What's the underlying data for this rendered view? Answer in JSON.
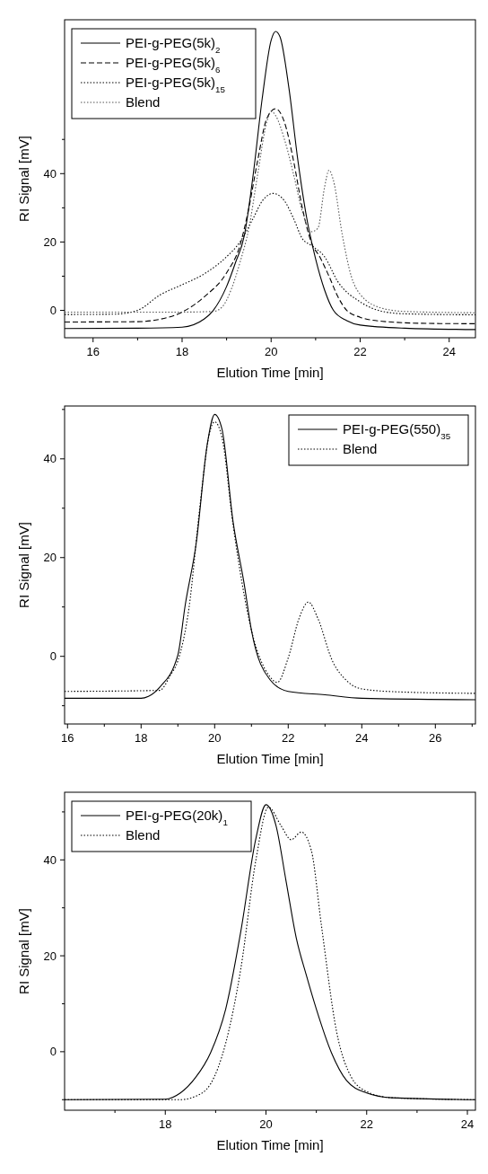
{
  "chart_data": [
    {
      "type": "line",
      "xlabel": "Elution Time [min]",
      "ylabel": "RI Signal [mV]",
      "xlim": [
        15.36,
        24.59
      ],
      "ylim": [
        -8,
        85
      ],
      "xticks": [
        16,
        {
          "value": 17,
          "label": null
        },
        18,
        {
          "value": 19,
          "label": null
        },
        20,
        {
          "value": 21,
          "label": null
        },
        22,
        {
          "value": 23,
          "label": null
        },
        24
      ],
      "yticks": [
        0,
        {
          "value": 10,
          "label": null
        },
        20,
        {
          "value": 30,
          "label": null
        },
        40,
        {
          "value": 50,
          "label": null
        }
      ],
      "legend": "top left",
      "series": [
        {
          "name": "PEI-g-PEG(5k)$_{2}$",
          "color": "#000000",
          "line_style": "solid",
          "x": [
            15.36,
            17,
            18,
            18.5,
            18.7,
            19,
            19.2,
            19.4,
            19.6,
            19.8,
            20,
            20.1,
            20.2,
            20.4,
            20.6,
            20.8,
            21,
            21.2,
            21.4,
            21.7,
            22,
            23,
            24.59
          ],
          "values": [
            -5.3,
            -5.2,
            -4.9,
            -2.5,
            0,
            7,
            14,
            22,
            40,
            62,
            79,
            81.6,
            80,
            65,
            44,
            27,
            15,
            6,
            0,
            -3,
            -4.3,
            -5.2,
            -5.6
          ]
        },
        {
          "name": "PEI-g-PEG(5k)$_{6}$",
          "color": "#000000",
          "line_style": "dashed",
          "x": [
            15.36,
            17,
            17.5,
            18,
            18.5,
            19,
            19.3,
            19.5,
            19.7,
            19.9,
            20.1,
            20.3,
            20.5,
            20.7,
            20.9,
            21.1,
            21.3,
            21.5,
            21.7,
            22,
            22.5,
            23.5,
            24.59
          ],
          "values": [
            -3.4,
            -3.3,
            -2.6,
            -0.5,
            4,
            11,
            19,
            30,
            44,
            56,
            59,
            55,
            44,
            30,
            20,
            15.5,
            10,
            4,
            0,
            -2,
            -3.2,
            -3.8,
            -3.9
          ]
        },
        {
          "name": "PEI-g-PEG(5k)$_{15}$",
          "color": "#000000",
          "line_style": "dotted",
          "x": [
            15.36,
            16.5,
            17,
            17.5,
            18,
            18.5,
            19,
            19.3,
            19.6,
            19.8,
            20.05,
            20.3,
            20.5,
            20.7,
            20.9,
            21.2,
            21.5,
            22,
            22.5,
            23,
            24.59
          ],
          "values": [
            -1.2,
            -1.1,
            0,
            4.5,
            7.5,
            10.7,
            15.7,
            20,
            27,
            32,
            34.2,
            32,
            27,
            21,
            19,
            15.7,
            8.4,
            2.5,
            -0.3,
            -1,
            -1.3
          ]
        },
        {
          "name": "Blend",
          "color": "#555555",
          "line_style": "dotted",
          "x": [
            15.36,
            18,
            18.7,
            18.9,
            19.1,
            19.3,
            19.5,
            19.7,
            19.9,
            20,
            20.1,
            20.3,
            20.5,
            20.7,
            20.9,
            21.05,
            21.2,
            21.3,
            21.4,
            21.6,
            21.8,
            22,
            22.5,
            23,
            24.59
          ],
          "values": [
            -0.5,
            -0.5,
            -0.3,
            1,
            6,
            14,
            24,
            40,
            55,
            58.2,
            57,
            50,
            40,
            29,
            23,
            24,
            36,
            41,
            38,
            22,
            10,
            4.7,
            0.6,
            -0.3,
            -0.7
          ]
        }
      ]
    },
    {
      "type": "line",
      "xlabel": "Elution Time [min]",
      "ylabel": "RI Signal [mV]",
      "xlim": [
        15.92,
        27.09
      ],
      "ylim": [
        -13.7,
        50.7
      ],
      "xticks": [
        16,
        {
          "value": 17,
          "label": null
        },
        18,
        {
          "value": 19,
          "label": null
        },
        20,
        {
          "value": 21,
          "label": null
        },
        22,
        {
          "value": 23,
          "label": null
        },
        24,
        {
          "value": 25,
          "label": null
        },
        26,
        {
          "value": 27,
          "label": null
        }
      ],
      "yticks": [
        {
          "value": -10,
          "label": null
        },
        0,
        {
          "value": 10,
          "label": null
        },
        20,
        {
          "value": 30,
          "label": null
        },
        40,
        {
          "value": 50,
          "label": null
        }
      ],
      "legend": "top right",
      "series": [
        {
          "name": "PEI-g-PEG(550)$_{35}$",
          "color": "#000000",
          "line_style": "solid",
          "x": [
            15.92,
            18,
            18.2,
            18.5,
            19,
            19.2,
            19.5,
            19.8,
            20,
            20.2,
            20.5,
            20.8,
            21,
            21.5,
            22,
            23,
            24,
            27.09
          ],
          "values": [
            -8.5,
            -8.5,
            -8.1,
            -6.3,
            0.3,
            10.4,
            23,
            43,
            49,
            46,
            27.3,
            14.8,
            5.3,
            -4.7,
            -7.1,
            -7.8,
            -8.5,
            -8.8
          ]
        },
        {
          "name": "Blend",
          "color": "#000000",
          "line_style": "dotted",
          "x": [
            15.92,
            18.5,
            18.8,
            19,
            19.3,
            19.6,
            19.85,
            20,
            20.2,
            20.5,
            21,
            21.5,
            21.7,
            22,
            22.3,
            22.55,
            22.8,
            23.2,
            23.6,
            24,
            25,
            27.09
          ],
          "values": [
            -7.1,
            -6.9,
            -3.8,
            -0.9,
            9.7,
            30.4,
            44.9,
            47.5,
            44.3,
            26.7,
            5.3,
            -4.1,
            -5.3,
            -0.3,
            7.8,
            11,
            7.8,
            -0.9,
            -5,
            -6.6,
            -7.2,
            -7.5
          ]
        }
      ]
    },
    {
      "type": "line",
      "xlabel": "Elution Time [min]",
      "ylabel": "RI Signal [mV]",
      "xlim": [
        16.0,
        24.16
      ],
      "ylim": [
        -12.2,
        54.1
      ],
      "xticks": [
        {
          "value": 17,
          "label": null
        },
        18,
        {
          "value": 19,
          "label": null
        },
        20,
        {
          "value": 21,
          "label": null
        },
        22,
        {
          "value": 23,
          "label": null
        },
        24
      ],
      "yticks": [
        {
          "value": -10,
          "label": null
        },
        0,
        {
          "value": 10,
          "label": null
        },
        20,
        {
          "value": 30,
          "label": null
        },
        40,
        {
          "value": 50,
          "label": null
        }
      ],
      "legend": "top left",
      "series": [
        {
          "name": "PEI-g-PEG(20k)$_{1}$",
          "color": "#000000",
          "line_style": "solid",
          "x": [
            16,
            18,
            18.3,
            18.6,
            18.9,
            19.2,
            19.5,
            19.8,
            20,
            20.2,
            20.4,
            20.6,
            20.8,
            21,
            21.3,
            21.6,
            22,
            22.5,
            24.16
          ],
          "values": [
            -10,
            -9.9,
            -8.6,
            -5.4,
            -0.2,
            8.9,
            25.1,
            44.5,
            51.5,
            47.1,
            35.5,
            23.8,
            16,
            8.9,
            -0.2,
            -6,
            -8.6,
            -9.6,
            -10
          ]
        },
        {
          "name": "Blend",
          "color": "#000000",
          "line_style": "dotted",
          "x": [
            16,
            18.3,
            18.6,
            18.9,
            19.2,
            19.5,
            19.8,
            20.05,
            20.3,
            20.5,
            20.7,
            20.9,
            21.1,
            21.4,
            21.7,
            22,
            22.5,
            24.16
          ],
          "values": [
            -10,
            -10,
            -9.3,
            -6.7,
            1.8,
            17.3,
            40,
            51,
            47.1,
            44.2,
            45.8,
            42,
            26.4,
            4.3,
            -5.4,
            -8.3,
            -9.6,
            -10
          ]
        }
      ]
    }
  ]
}
